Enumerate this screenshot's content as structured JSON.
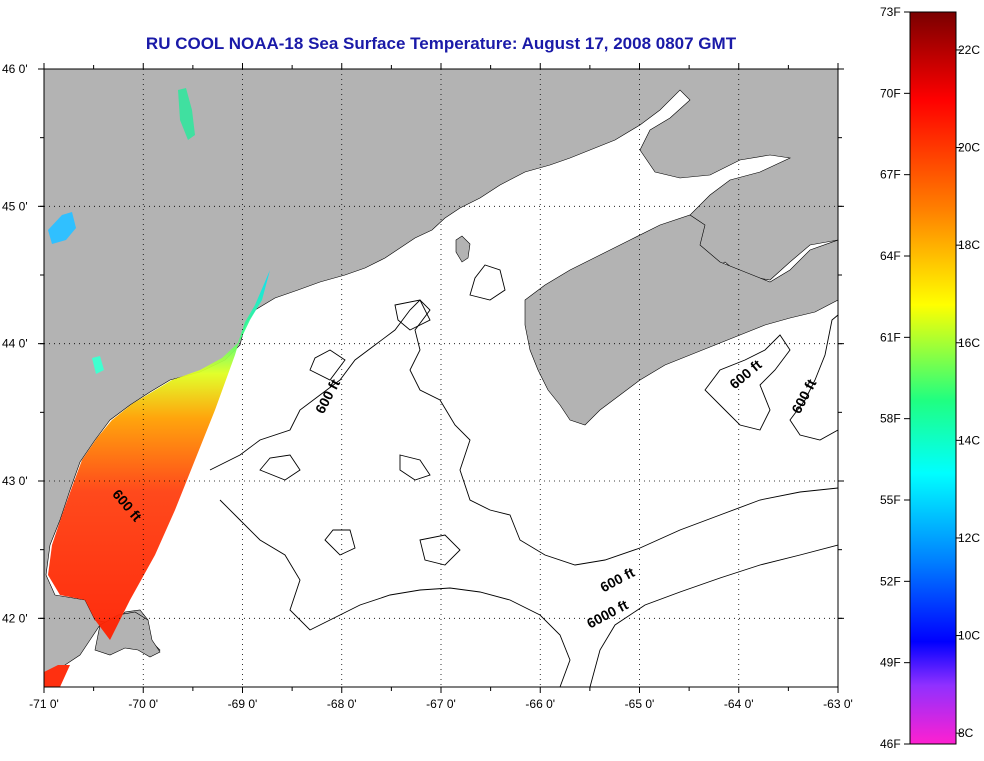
{
  "title": "RU COOL  NOAA-18  Sea Surface Temperature:  August 17, 2008 0807 GMT",
  "map": {
    "lon_range": [
      -71,
      -63
    ],
    "lat_range": [
      41.5,
      46
    ],
    "grid": true,
    "lon_ticks": [
      "-71 0'",
      "-70 0'",
      "-69 0'",
      "-68 0'",
      "-67 0'",
      "-66 0'",
      "-65 0'",
      "-64 0'",
      "-63 0'"
    ],
    "lat_ticks": [
      "46 0'",
      "45 0'",
      "44 0'",
      "43 0'",
      "42 0'"
    ],
    "land_color": "#b3b3b3",
    "water_color": "#ffffff",
    "contour_labels": [
      {
        "text": "600 ft",
        "lon": -68.1,
        "lat": 43.6
      },
      {
        "text": "600 ft",
        "lon": -70.2,
        "lat": 42.8
      },
      {
        "text": "600 ft",
        "lon": -63.9,
        "lat": 43.75
      },
      {
        "text": "600 ft",
        "lon": -63.3,
        "lat": 43.6
      },
      {
        "text": "600 ft",
        "lon": -65.2,
        "lat": 42.25
      },
      {
        "text": "6000 ft",
        "lon": -65.3,
        "lat": 42.0
      }
    ]
  },
  "colorbar": {
    "f_labels": [
      "73F",
      "70F",
      "67F",
      "64F",
      "61F",
      "58F",
      "55F",
      "52F",
      "49F",
      "46F"
    ],
    "c_labels": [
      "22C",
      "20C",
      "18C",
      "16C",
      "14C",
      "12C",
      "10C",
      "8C"
    ],
    "colors": [
      "#8b0000",
      "#ff0000",
      "#ff7f00",
      "#ffff00",
      "#00ff80",
      "#00ffff",
      "#0080ff",
      "#0000ff",
      "#8040ff",
      "#ff00ff"
    ]
  }
}
